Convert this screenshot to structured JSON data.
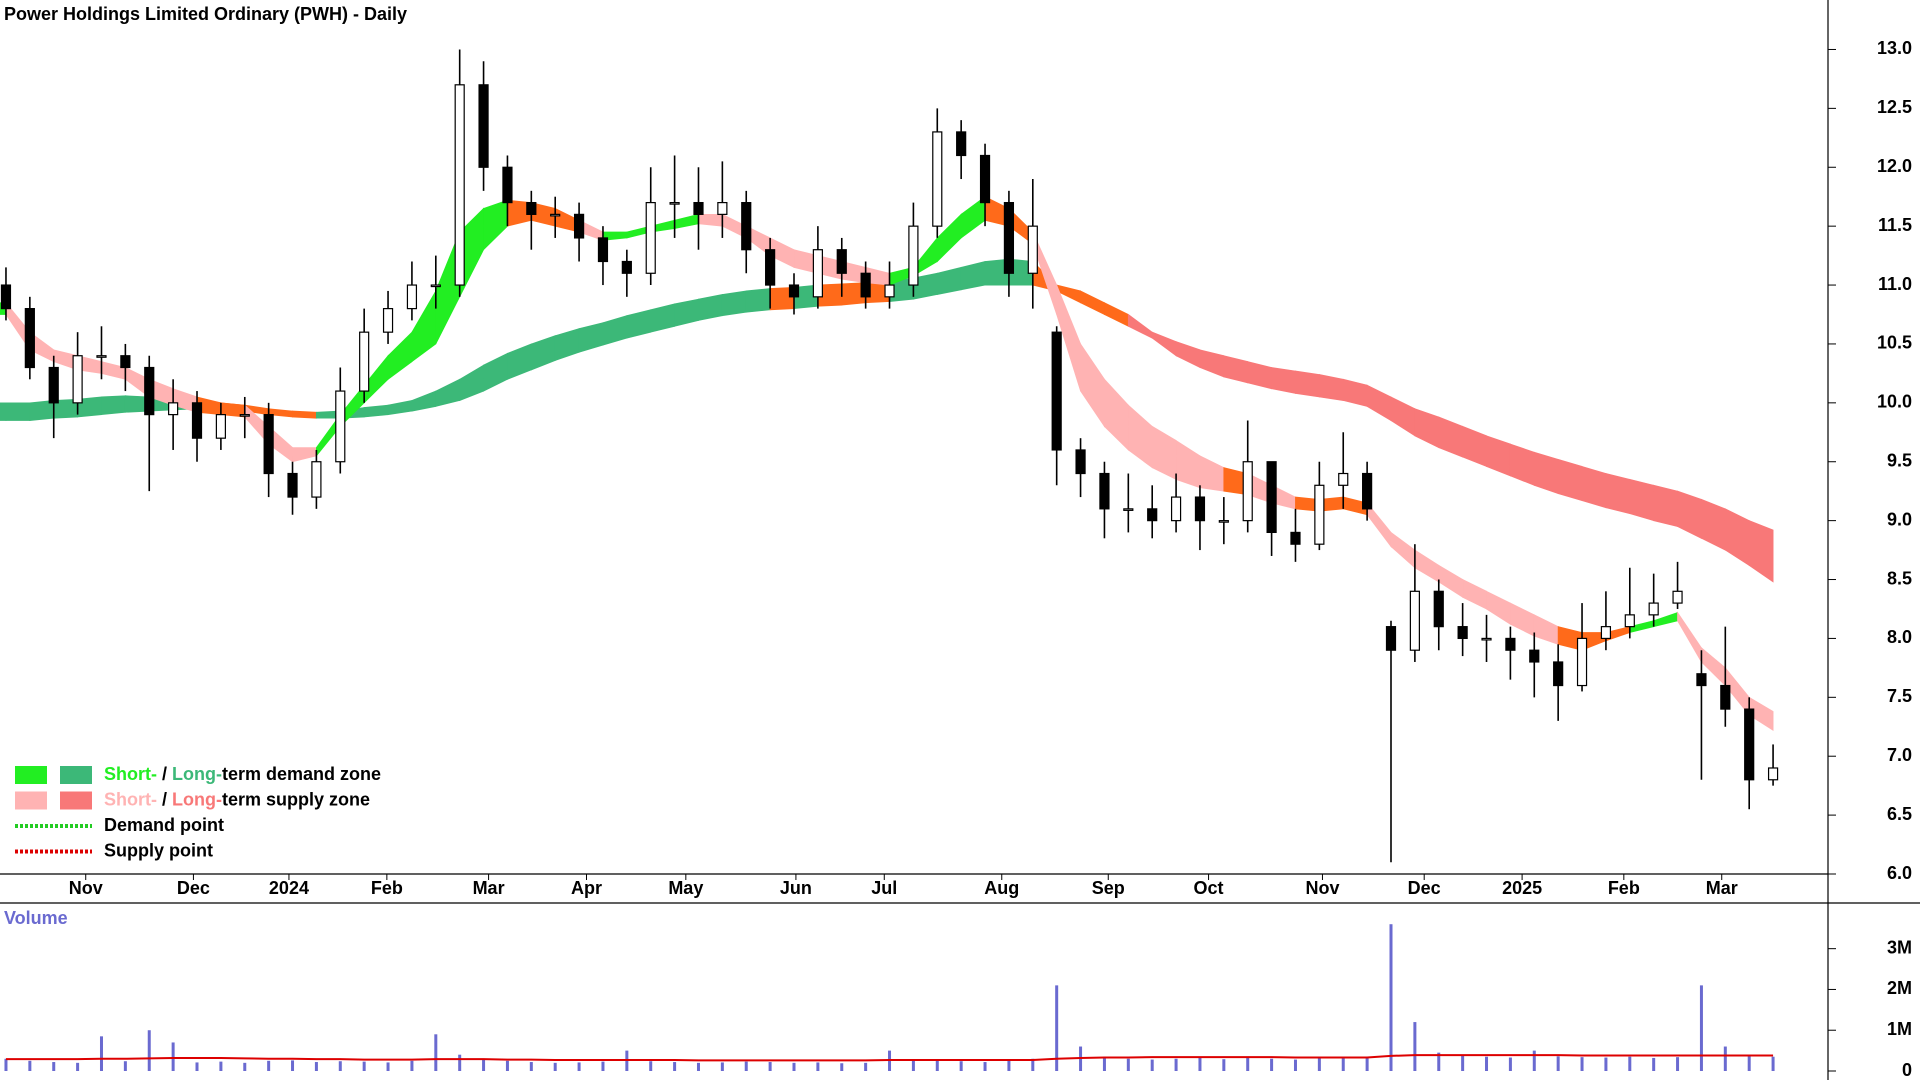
{
  "chart_data": [
    {
      "type": "candlestick",
      "title": "Power Holdings Limited Ordinary (PWH) - Daily",
      "open": [
        11.0,
        10.8,
        10.3,
        10.0,
        10.4,
        10.4,
        10.3,
        9.9,
        10.0,
        9.7,
        9.9,
        9.9,
        9.4,
        9.2,
        9.5,
        10.1,
        10.6,
        10.8,
        11.0,
        11.0,
        12.7,
        12.0,
        11.7,
        11.6,
        11.6,
        11.4,
        11.2,
        11.1,
        11.7,
        11.7,
        11.6,
        11.7,
        11.3,
        11.0,
        10.9,
        11.3,
        11.1,
        10.9,
        11.0,
        11.5,
        12.3,
        12.1,
        11.7,
        11.1,
        10.6,
        9.6,
        9.4,
        9.1,
        9.1,
        9.0,
        9.2,
        9.0,
        9.0,
        9.5,
        8.9,
        8.8,
        9.3,
        9.4,
        8.1,
        7.9,
        8.4,
        8.1,
        8.0,
        8.0,
        7.9,
        7.8,
        7.6,
        8.0,
        8.1,
        8.2,
        8.3,
        7.7,
        7.6,
        7.4,
        6.8
      ],
      "high": [
        11.15,
        10.9,
        10.4,
        10.6,
        10.65,
        10.5,
        10.4,
        10.2,
        10.1,
        10.0,
        10.05,
        10.0,
        9.5,
        9.6,
        10.3,
        10.8,
        10.95,
        11.2,
        11.25,
        13.0,
        12.9,
        12.1,
        11.8,
        11.75,
        11.7,
        11.5,
        11.3,
        12.0,
        12.1,
        12.0,
        12.05,
        11.8,
        11.4,
        11.1,
        11.5,
        11.4,
        11.2,
        11.2,
        11.7,
        12.5,
        12.4,
        12.2,
        11.8,
        11.9,
        10.65,
        9.7,
        9.5,
        9.4,
        9.3,
        9.4,
        9.3,
        9.2,
        9.85,
        9.5,
        9.1,
        9.5,
        9.75,
        9.5,
        8.15,
        8.8,
        8.5,
        8.3,
        8.2,
        8.1,
        8.05,
        7.95,
        8.3,
        8.4,
        8.6,
        8.55,
        8.65,
        7.9,
        8.1,
        7.5,
        7.1
      ],
      "low": [
        10.7,
        10.2,
        9.7,
        9.9,
        10.2,
        10.1,
        9.25,
        9.6,
        9.5,
        9.6,
        9.7,
        9.2,
        9.05,
        9.1,
        9.4,
        10.0,
        10.5,
        10.7,
        10.8,
        10.9,
        11.8,
        11.5,
        11.3,
        11.4,
        11.2,
        11.0,
        10.9,
        11.0,
        11.4,
        11.3,
        11.4,
        11.1,
        10.8,
        10.75,
        10.8,
        10.9,
        10.8,
        10.8,
        10.9,
        11.4,
        11.9,
        11.5,
        10.9,
        10.8,
        9.3,
        9.2,
        8.85,
        8.9,
        8.85,
        8.9,
        8.75,
        8.8,
        8.9,
        8.7,
        8.65,
        8.75,
        9.1,
        9.0,
        6.1,
        7.8,
        7.9,
        7.85,
        7.8,
        7.65,
        7.5,
        7.3,
        7.55,
        7.9,
        8.0,
        8.1,
        8.25,
        6.8,
        7.25,
        6.55,
        6.75
      ],
      "close": [
        10.8,
        10.3,
        10.0,
        10.4,
        10.4,
        10.3,
        9.9,
        10.0,
        9.7,
        9.9,
        9.9,
        9.4,
        9.2,
        9.5,
        10.1,
        10.6,
        10.8,
        11.0,
        11.0,
        12.7,
        12.0,
        11.7,
        11.6,
        11.6,
        11.4,
        11.2,
        11.1,
        11.7,
        11.7,
        11.6,
        11.7,
        11.3,
        11.0,
        10.9,
        11.3,
        11.1,
        10.9,
        11.0,
        11.5,
        12.3,
        12.1,
        11.7,
        11.1,
        11.5,
        9.6,
        9.4,
        9.1,
        9.1,
        9.0,
        9.2,
        9.0,
        9.0,
        9.5,
        8.9,
        8.8,
        9.3,
        9.4,
        9.1,
        7.9,
        8.4,
        8.1,
        8.0,
        8.0,
        7.9,
        7.8,
        7.6,
        8.0,
        8.1,
        8.2,
        8.3,
        8.4,
        7.6,
        7.4,
        6.8,
        6.9
      ],
      "up_color": "#ffffff",
      "down_color": "#000000",
      "short_band": {
        "upper": [
          10.85,
          10.6,
          10.45,
          10.4,
          10.35,
          10.3,
          10.2,
          10.12,
          10.05,
          10.0,
          9.98,
          9.8,
          9.62,
          9.62,
          9.9,
          10.15,
          10.4,
          10.6,
          10.95,
          11.45,
          11.65,
          11.72,
          11.7,
          11.65,
          11.55,
          11.45,
          11.45,
          11.5,
          11.55,
          11.6,
          11.6,
          11.5,
          11.4,
          11.3,
          11.25,
          11.2,
          11.15,
          11.1,
          11.15,
          11.4,
          11.6,
          11.75,
          11.65,
          11.45,
          11.0,
          10.5,
          10.2,
          9.98,
          9.8,
          9.68,
          9.55,
          9.45,
          9.4,
          9.3,
          9.2,
          9.18,
          9.2,
          9.15,
          8.9,
          8.75,
          8.62,
          8.5,
          8.4,
          8.3,
          8.2,
          8.1,
          8.05,
          8.05,
          8.1,
          8.15,
          8.22,
          7.92,
          7.75,
          7.5,
          7.38
        ],
        "lower": [
          10.75,
          10.45,
          10.35,
          10.28,
          10.25,
          10.2,
          10.05,
          9.98,
          9.92,
          9.9,
          9.88,
          9.65,
          9.5,
          9.55,
          9.8,
          10.0,
          10.2,
          10.35,
          10.5,
          10.9,
          11.3,
          11.5,
          11.55,
          11.5,
          11.45,
          11.38,
          11.4,
          11.45,
          11.48,
          11.52,
          11.5,
          11.4,
          11.25,
          11.15,
          11.1,
          11.05,
          11.02,
          11.0,
          11.08,
          11.2,
          11.4,
          11.55,
          11.5,
          11.35,
          10.75,
          10.1,
          9.8,
          9.6,
          9.45,
          9.35,
          9.28,
          9.25,
          9.22,
          9.15,
          9.1,
          9.08,
          9.1,
          9.05,
          8.78,
          8.6,
          8.48,
          8.35,
          8.25,
          8.12,
          8.02,
          7.95,
          7.9,
          7.98,
          8.05,
          8.1,
          8.15,
          7.8,
          7.6,
          7.35,
          7.22
        ],
        "colors": [
          "#22ee22",
          "#ffb3b3",
          "#ffb3b3",
          "#ffb3b3",
          "#ffb3b3",
          "#ffb3b3",
          "#ffb3b3",
          "#ffb3b3",
          "#ffb3b3",
          "#ff6a1a",
          "#ff6a1a",
          "#ffb3b3",
          "#ffb3b3",
          "#ffb3b3",
          "#22ee22",
          "#22ee22",
          "#22ee22",
          "#22ee22",
          "#22ee22",
          "#22ee22",
          "#22ee22",
          "#22ee22",
          "#ff6a1a",
          "#ff6a1a",
          "#ff6a1a",
          "#ffb3b3",
          "#22ee22",
          "#22ee22",
          "#22ee22",
          "#22ee22",
          "#ffb3b3",
          "#ffb3b3",
          "#ffb3b3",
          "#ffb3b3",
          "#ffb3b3",
          "#ffb3b3",
          "#ffb3b3",
          "#ffb3b3",
          "#22ee22",
          "#22ee22",
          "#22ee22",
          "#22ee22",
          "#ff6a1a",
          "#ff6a1a",
          "#ffb3b3",
          "#ffb3b3",
          "#ffb3b3",
          "#ffb3b3",
          "#ffb3b3",
          "#ffb3b3",
          "#ffb3b3",
          "#ffb3b3",
          "#ff6a1a",
          "#ffb3b3",
          "#ffb3b3",
          "#ff6a1a",
          "#ff6a1a",
          "#ff6a1a",
          "#ffb3b3",
          "#ffb3b3",
          "#ffb3b3",
          "#ffb3b3",
          "#ffb3b3",
          "#ffb3b3",
          "#ffb3b3",
          "#ffb3b3",
          "#ff6a1a",
          "#ff6a1a",
          "#ff6a1a",
          "#22ee22",
          "#22ee22",
          "#ffb3b3",
          "#ffb3b3",
          "#ffb3b3",
          "#ffb3b3"
        ]
      },
      "long_band": {
        "upper": [
          10.0,
          10.0,
          10.02,
          10.03,
          10.05,
          10.06,
          10.05,
          10.04,
          10.03,
          10.0,
          9.98,
          9.95,
          9.93,
          9.92,
          9.93,
          9.96,
          9.98,
          10.02,
          10.1,
          10.2,
          10.32,
          10.42,
          10.5,
          10.57,
          10.63,
          10.68,
          10.74,
          10.79,
          10.84,
          10.88,
          10.92,
          10.95,
          10.97,
          10.98,
          11.0,
          11.01,
          11.02,
          11.03,
          11.06,
          11.1,
          11.15,
          11.2,
          11.22,
          11.2,
          11.0,
          10.95,
          10.85,
          10.75,
          10.6,
          10.52,
          10.45,
          10.4,
          10.35,
          10.3,
          10.27,
          10.24,
          10.2,
          10.15,
          10.05,
          9.95,
          9.88,
          9.8,
          9.72,
          9.65,
          9.58,
          9.52,
          9.46,
          9.4,
          9.35,
          9.3,
          9.25,
          9.18,
          9.1,
          9.0,
          8.92
        ],
        "lower": [
          9.85,
          9.85,
          9.87,
          9.88,
          9.9,
          9.92,
          9.93,
          9.94,
          9.95,
          9.94,
          9.93,
          9.9,
          9.88,
          9.87,
          9.87,
          9.88,
          9.9,
          9.93,
          9.97,
          10.02,
          10.1,
          10.2,
          10.28,
          10.36,
          10.43,
          10.49,
          10.55,
          10.6,
          10.65,
          10.7,
          10.74,
          10.77,
          10.79,
          10.8,
          10.82,
          10.83,
          10.85,
          10.86,
          10.88,
          10.92,
          10.96,
          11.0,
          11.0,
          11.0,
          10.95,
          10.85,
          10.75,
          10.65,
          10.55,
          10.4,
          10.3,
          10.22,
          10.17,
          10.12,
          10.08,
          10.05,
          10.02,
          9.97,
          9.85,
          9.72,
          9.62,
          9.54,
          9.46,
          9.38,
          9.3,
          9.23,
          9.17,
          9.11,
          9.06,
          9.0,
          8.95,
          8.85,
          8.75,
          8.62,
          8.48
        ],
        "colors": [
          "#3cb878",
          "#3cb878",
          "#3cb878",
          "#3cb878",
          "#3cb878",
          "#3cb878",
          "#3cb878",
          "#3cb878",
          "#3cb878",
          "#3cb878",
          "#ff6a1a",
          "#ff6a1a",
          "#ff6a1a",
          "#ff6a1a",
          "#3cb878",
          "#3cb878",
          "#3cb878",
          "#3cb878",
          "#3cb878",
          "#3cb878",
          "#3cb878",
          "#3cb878",
          "#3cb878",
          "#3cb878",
          "#3cb878",
          "#3cb878",
          "#3cb878",
          "#3cb878",
          "#3cb878",
          "#3cb878",
          "#3cb878",
          "#3cb878",
          "#3cb878",
          "#ff6a1a",
          "#3cb878",
          "#ff6a1a",
          "#ff6a1a",
          "#ff6a1a",
          "#3cb878",
          "#3cb878",
          "#3cb878",
          "#3cb878",
          "#3cb878",
          "#3cb878",
          "#ff6a1a",
          "#ff6a1a",
          "#ff6a1a",
          "#ff6a1a",
          "#f87878",
          "#f87878",
          "#f87878",
          "#f87878",
          "#f87878",
          "#f87878",
          "#f87878",
          "#f87878",
          "#f87878",
          "#f87878",
          "#f87878",
          "#f87878",
          "#f87878",
          "#f87878",
          "#f87878",
          "#f87878",
          "#f87878",
          "#f87878",
          "#f87878",
          "#f87878",
          "#f87878",
          "#f87878",
          "#f87878",
          "#f87878",
          "#f87878",
          "#f87878",
          "#f87878"
        ]
      },
      "xlim": [
        -0.25,
        76.3
      ],
      "xticks": [
        {
          "value": 3.34,
          "label": "Nov"
        },
        {
          "value": 7.85,
          "label": "Dec"
        },
        {
          "value": 11.85,
          "label": "2024"
        },
        {
          "value": 15.95,
          "label": "Feb"
        },
        {
          "value": 20.21,
          "label": "Mar"
        },
        {
          "value": 24.31,
          "label": "Apr"
        },
        {
          "value": 28.47,
          "label": "May"
        },
        {
          "value": 33.08,
          "label": "Jun"
        },
        {
          "value": 36.78,
          "label": "Jul"
        },
        {
          "value": 41.7,
          "label": "Aug"
        },
        {
          "value": 46.16,
          "label": "Sep"
        },
        {
          "value": 50.36,
          "label": "Oct"
        },
        {
          "value": 55.13,
          "label": "Nov"
        },
        {
          "value": 59.39,
          "label": "Dec"
        },
        {
          "value": 63.49,
          "label": "2025"
        },
        {
          "value": 67.75,
          "label": "Feb"
        },
        {
          "value": 71.85,
          "label": "Mar"
        }
      ],
      "ylim": [
        6.0,
        13.42
      ],
      "yticks": [
        {
          "value": 6,
          "label": "6.0"
        },
        {
          "value": 6.5,
          "label": "6.5"
        },
        {
          "value": 7,
          "label": "7.0"
        },
        {
          "value": 7.5,
          "label": "7.5"
        },
        {
          "value": 8,
          "label": "8.0"
        },
        {
          "value": 8.5,
          "label": "8.5"
        },
        {
          "value": 9,
          "label": "9.0"
        },
        {
          "value": 9.5,
          "label": "9.5"
        },
        {
          "value": 10,
          "label": "10.0"
        },
        {
          "value": 10.5,
          "label": "10.5"
        },
        {
          "value": 11,
          "label": "11.0"
        },
        {
          "value": 11.5,
          "label": "11.5"
        },
        {
          "value": 12,
          "label": "12.0"
        },
        {
          "value": 12.5,
          "label": "12.5"
        },
        {
          "value": 13,
          "label": "13.0"
        }
      ]
    },
    {
      "type": "volume",
      "title": "Volume",
      "color": "#6a6ad0",
      "values": [
        300000,
        250000,
        220000,
        200000,
        850000,
        240000,
        1000000,
        700000,
        210000,
        230000,
        200000,
        250000,
        260000,
        220000,
        240000,
        230000,
        210000,
        250000,
        900000,
        400000,
        300000,
        250000,
        220000,
        200000,
        210000,
        230000,
        500000,
        240000,
        220000,
        200000,
        210000,
        230000,
        220000,
        200000,
        210000,
        190000,
        200000,
        500000,
        250000,
        260000,
        240000,
        220000,
        260000,
        300000,
        2100000,
        600000,
        350000,
        300000,
        280000,
        300000,
        320000,
        290000,
        330000,
        300000,
        280000,
        310000,
        320000,
        330000,
        3600000,
        1200000,
        450000,
        380000,
        350000,
        330000,
        500000,
        360000,
        340000,
        330000,
        350000,
        320000,
        340000,
        2100000,
        600000,
        400000,
        350000
      ],
      "ma": {
        "color": "#dd0000",
        "values": [
          290000,
          290000,
          290000,
          290000,
          300000,
          300000,
          310000,
          320000,
          320000,
          320000,
          310000,
          300000,
          300000,
          290000,
          290000,
          280000,
          280000,
          280000,
          290000,
          290000,
          290000,
          280000,
          280000,
          270000,
          270000,
          270000,
          270000,
          270000,
          270000,
          260000,
          260000,
          260000,
          260000,
          260000,
          260000,
          260000,
          260000,
          270000,
          270000,
          270000,
          270000,
          270000,
          270000,
          270000,
          300000,
          320000,
          330000,
          330000,
          340000,
          340000,
          340000,
          340000,
          340000,
          340000,
          330000,
          330000,
          330000,
          330000,
          370000,
          390000,
          390000,
          390000,
          390000,
          390000,
          390000,
          390000,
          380000,
          380000,
          380000,
          380000,
          380000,
          380000,
          380000,
          380000,
          380000
        ]
      },
      "ylim": [
        0,
        4120000
      ],
      "yticks": [
        0,
        {
          "value": 1000000,
          "label": "1M"
        },
        {
          "value": 2000000,
          "label": "2M"
        },
        {
          "value": 3000000,
          "label": "3M"
        }
      ]
    }
  ],
  "legend": [
    {
      "swatches": [
        "#22ee22",
        "#3cb878"
      ],
      "parts": [
        {
          "text": "Short-",
          "color": "#22ee22"
        },
        {
          "text": " / "
        },
        {
          "text": "Long-",
          "color": "#3cb878"
        },
        {
          "text": "term demand zone"
        }
      ]
    },
    {
      "swatches": [
        "#ffb3b3",
        "#f87878"
      ],
      "parts": [
        {
          "text": "Short-",
          "color": "#ffb3b3"
        },
        {
          "text": " / "
        },
        {
          "text": "Long-",
          "color": "#f87878"
        },
        {
          "text": "term supply zone"
        }
      ]
    },
    {
      "dotted": "#22cc22",
      "parts": [
        {
          "text": "Demand point"
        }
      ]
    },
    {
      "dotted": "#dd0000",
      "parts": [
        {
          "text": "Supply point"
        }
      ]
    }
  ]
}
